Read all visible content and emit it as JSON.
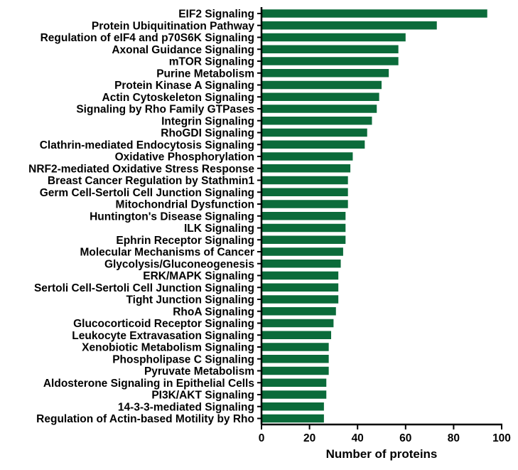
{
  "chart_data": {
    "type": "bar",
    "orientation": "horizontal",
    "categories": [
      "EIF2 Signaling",
      "Protein Ubiquitination Pathway",
      "Regulation of eIF4 and p70S6K Signaling",
      "Axonal Guidance Signaling",
      "mTOR Signaling",
      "Purine Metabolism",
      "Protein Kinase A Signaling",
      "Actin Cytoskeleton Signaling",
      "Signaling by Rho Family GTPases",
      "Integrin Signaling",
      "RhoGDI Signaling",
      "Clathrin-mediated Endocytosis Signaling",
      "Oxidative Phosphorylation",
      "NRF2-mediated Oxidative Stress Response",
      "Breast Cancer Regulation by Stathmin1",
      "Germ Cell-Sertoli Cell Junction Signaling",
      "Mitochondrial Dysfunction",
      "Huntington's Disease Signaling",
      "ILK Signaling",
      "Ephrin Receptor Signaling",
      "Molecular Mechanisms of Cancer",
      "Glycolysis/Gluconeogenesis",
      "ERK/MAPK Signaling",
      "Sertoli Cell-Sertoli Cell Junction Signaling",
      "Tight Junction Signaling",
      "RhoA Signaling",
      "Glucocorticoid Receptor Signaling",
      "Leukocyte Extravasation Signaling",
      "Xenobiotic Metabolism Signaling",
      "Phospholipase C Signaling",
      "Pyruvate Metabolism",
      "Aldosterone Signaling in Epithelial Cells",
      "PI3K/AKT Signaling",
      "14-3-3-mediated Signaling",
      "Regulation of Actin-based Motility by Rho"
    ],
    "values": [
      94,
      73,
      60,
      57,
      57,
      53,
      50,
      49,
      48,
      46,
      44,
      43,
      38,
      37,
      36,
      36,
      36,
      35,
      35,
      35,
      34,
      33,
      32,
      32,
      32,
      31,
      30,
      29,
      28,
      28,
      28,
      27,
      27,
      26,
      26
    ],
    "xlabel": "Number of proteins",
    "ylabel": "",
    "title": "",
    "xlim": [
      0,
      100
    ],
    "xticks": [
      "0",
      "20",
      "40",
      "60",
      "80",
      "100"
    ],
    "grid": false,
    "legend": "none",
    "bar_color": "#0b6b3a",
    "axis_color": "#000000"
  }
}
